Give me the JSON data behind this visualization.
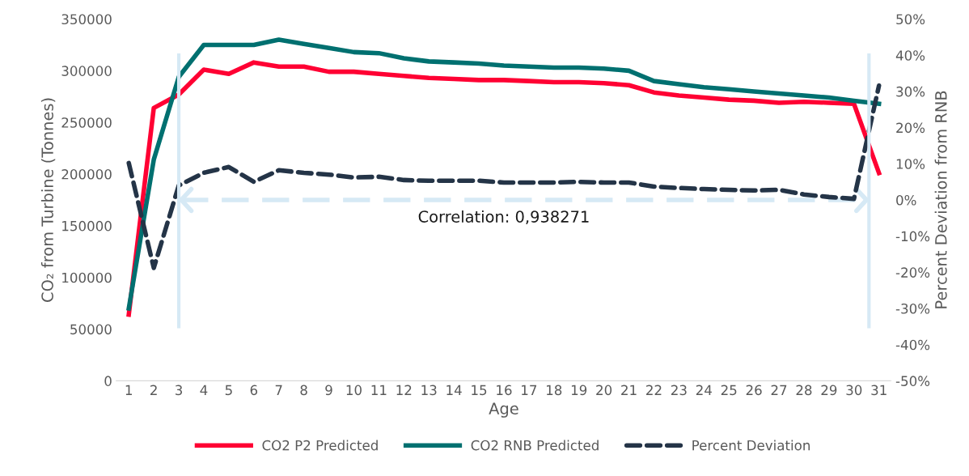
{
  "chart_data": {
    "type": "line",
    "xlabel": "Age",
    "ylabel": "CO₂ from Turbine (Tonnes)",
    "y2label": "Percent Deviation from RNB",
    "x": [
      1,
      2,
      3,
      4,
      5,
      6,
      7,
      8,
      9,
      10,
      11,
      12,
      13,
      14,
      15,
      16,
      17,
      18,
      19,
      20,
      21,
      22,
      23,
      24,
      25,
      26,
      27,
      28,
      29,
      30,
      31
    ],
    "xlim": [
      0.5,
      31.5
    ],
    "xticks": [
      1,
      2,
      3,
      4,
      5,
      6,
      7,
      8,
      9,
      10,
      11,
      12,
      13,
      14,
      15,
      16,
      17,
      18,
      19,
      20,
      21,
      22,
      23,
      24,
      25,
      26,
      27,
      28,
      29,
      30,
      31
    ],
    "ylim": [
      0,
      350000
    ],
    "yticks": [
      0,
      50000,
      100000,
      150000,
      200000,
      250000,
      300000,
      350000
    ],
    "y2lim": [
      -50,
      50
    ],
    "y2ticks": [
      {
        "value": -50,
        "label": "-50%"
      },
      {
        "value": -40,
        "label": "-40%"
      },
      {
        "value": -30,
        "label": "-30%"
      },
      {
        "value": -20,
        "label": "-20%"
      },
      {
        "value": -10,
        "label": "-10%"
      },
      {
        "value": 0,
        "label": "0%"
      },
      {
        "value": 10,
        "label": "10%"
      },
      {
        "value": 20,
        "label": "20%"
      },
      {
        "value": 30,
        "label": "30%"
      },
      {
        "value": 40,
        "label": "40%"
      },
      {
        "value": 50,
        "label": "50%"
      }
    ],
    "series": [
      {
        "name": "CO2 P2 Predicted",
        "color": "#ff0033",
        "line_style": "solid",
        "values": [
          64000,
          264000,
          277000,
          301000,
          297000,
          308000,
          304000,
          304000,
          299000,
          299000,
          297000,
          295000,
          293000,
          292000,
          291000,
          291000,
          290000,
          289000,
          289000,
          288000,
          286000,
          279000,
          276000,
          274000,
          272000,
          271000,
          269000,
          270000,
          269000,
          268000,
          201000
        ]
      },
      {
        "name": "CO2 RNB Predicted",
        "color": "#007070",
        "line_style": "solid",
        "values": [
          70000,
          214000,
          294000,
          325000,
          325000,
          325000,
          330000,
          326000,
          322000,
          318000,
          317000,
          312000,
          309000,
          308000,
          307000,
          305000,
          304000,
          303000,
          303000,
          302000,
          300000,
          290000,
          287000,
          284000,
          282000,
          280000,
          278000,
          276000,
          274000,
          271000,
          268000
        ]
      },
      {
        "name": "Percent Deviation",
        "color": "#243447",
        "line_style": "dashed",
        "axis": "y2",
        "values": [
          10.2,
          -18.8,
          4,
          7.5,
          9.1,
          5,
          8.2,
          7.5,
          7,
          6.2,
          6.4,
          5.5,
          5.3,
          5.3,
          5.3,
          4.8,
          4.8,
          4.8,
          5,
          4.8,
          4.8,
          3.7,
          3.3,
          3,
          2.8,
          2.6,
          2.8,
          1.5,
          0.8,
          0.3,
          31.6
        ]
      }
    ],
    "ref_lines": [
      {
        "axis": "x",
        "value": 3,
        "color": "#d6e9f5"
      },
      {
        "axis": "x",
        "value": 30.6,
        "color": "#d6e9f5"
      },
      {
        "axis": "y2",
        "value": 0,
        "color": "#d6e9f5",
        "line_style": "dashed"
      }
    ],
    "annotations": [
      "Correlation: 0,938271"
    ],
    "legend": "bottom",
    "grid": false,
    "marker": "none"
  }
}
